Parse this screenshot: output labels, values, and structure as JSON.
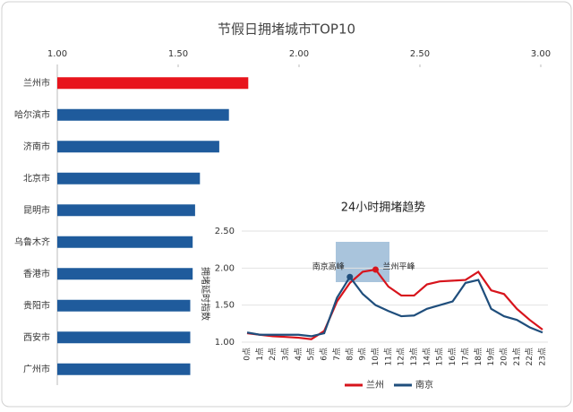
{
  "chart_data": [
    {
      "type": "bar",
      "orientation": "horizontal",
      "title": "节假日拥堵城市TOP10",
      "categories": [
        "兰州市",
        "哈尔滨市",
        "济南市",
        "北京市",
        "昆明市",
        "乌鲁木齐",
        "香港市",
        "贵阳市",
        "西安市",
        "广州市"
      ],
      "values": [
        1.79,
        1.71,
        1.67,
        1.59,
        1.57,
        1.56,
        1.56,
        1.55,
        1.55,
        1.55
      ],
      "colors": [
        "#e8141c",
        "#1f5b9c",
        "#1f5b9c",
        "#1f5b9c",
        "#1f5b9c",
        "#1f5b9c",
        "#1f5b9c",
        "#1f5b9c",
        "#1f5b9c",
        "#1f5b9c"
      ],
      "xlim": [
        1,
        3
      ],
      "xticks": [
        {
          "value": 1,
          "label": "1.00"
        },
        {
          "value": 1.5,
          "label": "1.50"
        },
        {
          "value": 2,
          "label": "2.00"
        },
        {
          "value": 2.5,
          "label": "2.50"
        },
        {
          "value": 3,
          "label": "3.00"
        }
      ]
    },
    {
      "type": "line",
      "title": "24小时拥堵趋势",
      "y_label": "拥堵延时指数",
      "categories": [
        "0点",
        "1点",
        "2点",
        "3点",
        "4点",
        "5点",
        "6点",
        "7点",
        "8点",
        "9点",
        "10点",
        "11点",
        "12点",
        "13点",
        "14点",
        "15点",
        "16点",
        "17点",
        "18点",
        "19点",
        "20点",
        "21点",
        "22点",
        "23点"
      ],
      "series": [
        {
          "name": "兰州",
          "color": "#d7141c",
          "values": [
            1.12,
            1.1,
            1.08,
            1.07,
            1.06,
            1.04,
            1.15,
            1.55,
            1.8,
            1.95,
            1.98,
            1.75,
            1.63,
            1.63,
            1.78,
            1.82,
            1.83,
            1.84,
            1.95,
            1.7,
            1.65,
            1.45,
            1.3,
            1.17
          ]
        },
        {
          "name": "南京",
          "color": "#1f4e7c",
          "values": [
            1.13,
            1.1,
            1.1,
            1.1,
            1.1,
            1.08,
            1.12,
            1.6,
            1.88,
            1.65,
            1.5,
            1.42,
            1.35,
            1.36,
            1.45,
            1.5,
            1.55,
            1.8,
            1.84,
            1.45,
            1.35,
            1.3,
            1.2,
            1.13
          ]
        }
      ],
      "annotations": [
        "南京高峰",
        "兰州平峰"
      ],
      "ylim": [
        1,
        2.5
      ],
      "yticks": [
        {
          "value": 1,
          "label": "1.00"
        },
        {
          "value": 1.5,
          "label": "1.50"
        },
        {
          "value": 2,
          "label": "2.00"
        },
        {
          "value": 2.5,
          "label": "2.50"
        }
      ],
      "grid": true,
      "legend": "bottom"
    }
  ]
}
